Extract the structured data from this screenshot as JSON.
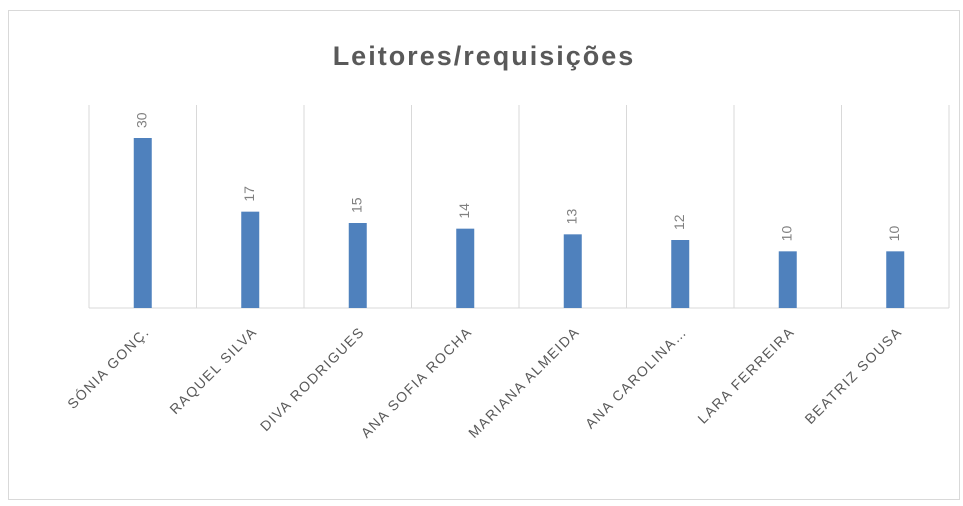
{
  "chart_data": {
    "type": "bar",
    "title": "Leitores/requisições",
    "categories": [
      "SÓNIA GONÇ.",
      "RAQUEL SILVA",
      "DIVA RODRIGUES",
      "ANA SOFIA ROCHA",
      "MARIANA ALMEIDA",
      "ANA CAROLINA…",
      "LARA FERREIRA",
      "BEATRIZ SOUSA"
    ],
    "values": [
      30,
      17,
      15,
      14,
      13,
      12,
      10,
      10
    ],
    "color": "#4f81bd"
  }
}
